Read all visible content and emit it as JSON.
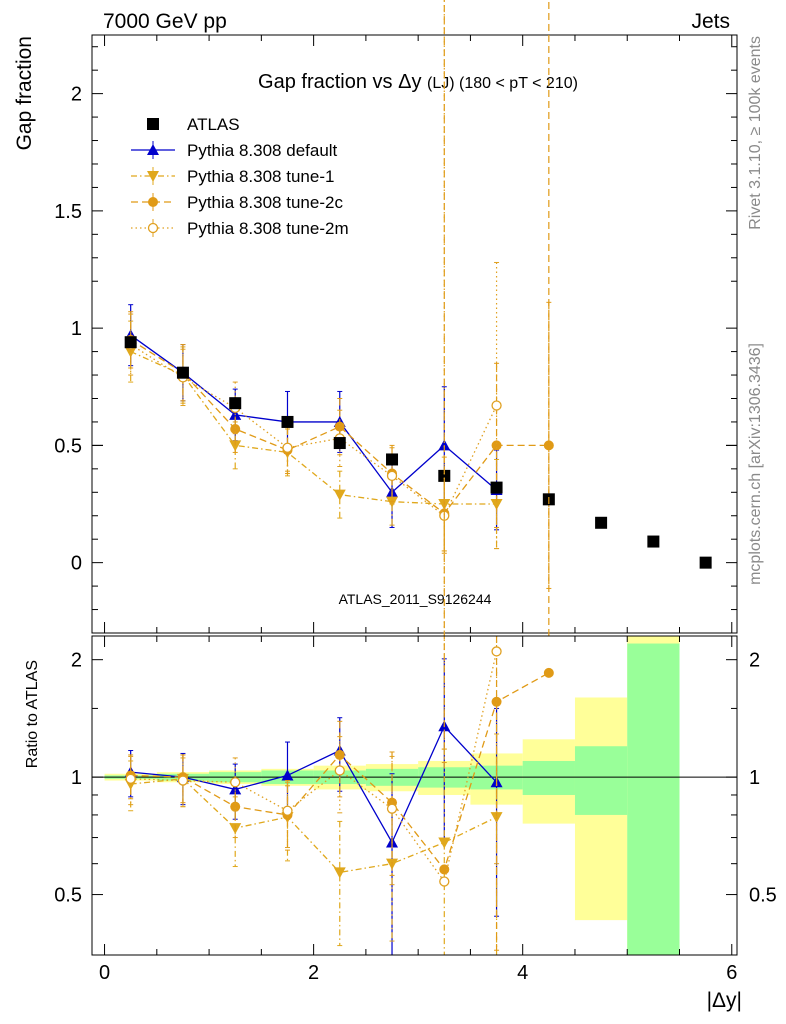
{
  "header": {
    "left": "7000 GeV pp",
    "right": "Jets",
    "side_top": "Rivet 3.1.10, ≥ 100k events",
    "side_bottom": "mcplots.cern.ch [arXiv:1306.3436]",
    "watermark": "ATLAS_2011_S9126244"
  },
  "chart_data": [
    {
      "type": "scatter",
      "title": "Gap fraction vs",
      "title_symbol": "Δy",
      "title_suffix": "(LJ) (180 < pT < 210)",
      "ylabel": "Gap fraction",
      "xlabel": "|Δy|",
      "xlim": [
        -0.12,
        6.05
      ],
      "ylim": [
        -0.3,
        2.25
      ],
      "yticks": [
        0,
        0.5,
        1,
        1.5,
        2
      ],
      "ytick_labels": [
        "0",
        "0.5",
        "1",
        "1.5",
        "2"
      ],
      "xticks": [
        0,
        2,
        4,
        6
      ],
      "xtick_labels": [
        "0",
        "2",
        "4",
        "6"
      ],
      "legend_placement": "top-left",
      "series": [
        {
          "name": "ATLAS",
          "color": "#000000",
          "marker": "square",
          "x": [
            0.25,
            0.75,
            1.25,
            1.75,
            2.25,
            2.75,
            3.25,
            3.75,
            4.25,
            4.75,
            5.25,
            5.75
          ],
          "y": [
            0.94,
            0.81,
            0.68,
            0.6,
            0.51,
            0.44,
            0.37,
            0.32,
            0.27,
            0.17,
            0.09,
            0.0
          ],
          "err": [
            0.02,
            0.02,
            0.02,
            0.02,
            0.02,
            0.02,
            0.02,
            0.02,
            0.02,
            0.02,
            0.02,
            0.02
          ]
        },
        {
          "name": "Pythia 8.308 default",
          "color": "#0000cc",
          "marker": "triangle-up",
          "line": "solid",
          "x": [
            0.25,
            0.75,
            1.25,
            1.75,
            2.25,
            2.75,
            3.25,
            3.75
          ],
          "y": [
            0.97,
            0.81,
            0.63,
            0.6,
            0.6,
            0.3,
            0.5,
            0.31
          ],
          "err": [
            0.13,
            0.12,
            0.11,
            0.13,
            0.13,
            0.15,
            0.25,
            0.17
          ]
        },
        {
          "name": "Pythia 8.308 tune-1",
          "color": "#e0a81c",
          "marker": "triangle-down",
          "line": "dashdot",
          "x": [
            0.25,
            0.75,
            1.25,
            1.75,
            2.25,
            2.75,
            3.25,
            3.75
          ],
          "y": [
            0.9,
            0.8,
            0.5,
            0.47,
            0.29,
            0.26,
            0.25,
            0.25
          ],
          "err": [
            0.13,
            0.12,
            0.1,
            0.1,
            0.1,
            0.1,
            0.2,
            0.19
          ]
        },
        {
          "name": "Pythia 8.308 tune-2c",
          "color": "#e09a16",
          "marker": "circle",
          "line": "dashed",
          "x": [
            0.25,
            0.75,
            1.25,
            1.75,
            2.25,
            2.75,
            3.25,
            3.75,
            4.25
          ],
          "y": [
            0.95,
            0.81,
            0.57,
            0.48,
            0.58,
            0.38,
            0.21,
            0.5,
            0.5
          ],
          "err": [
            0.12,
            0.12,
            0.1,
            0.1,
            0.12,
            0.12,
            0.17,
            0.35,
            0.61
          ]
        },
        {
          "name": "Pythia 8.308 tune-2m",
          "color": "#e0a020",
          "marker": "open-circle",
          "line": "dotted",
          "x": [
            0.25,
            0.75,
            1.25,
            1.75,
            2.25,
            2.75,
            3.25,
            3.75
          ],
          "y": [
            0.93,
            0.79,
            0.66,
            0.49,
            0.53,
            0.37,
            0.2,
            0.67
          ],
          "err": [
            0.13,
            0.12,
            0.11,
            0.1,
            0.12,
            0.12,
            0.15,
            0.61
          ]
        }
      ]
    },
    {
      "type": "scatter",
      "ylabel": "Ratio to ATLAS",
      "xlabel": "|Δy|",
      "xlim": [
        -0.12,
        6.05
      ],
      "ylim": [
        0.35,
        2.3
      ],
      "yticks": [
        0.5,
        1,
        2
      ],
      "ytick_labels": [
        "0.5",
        "1",
        "2"
      ],
      "ymajor": [
        0.5,
        1,
        2
      ],
      "yminor": [
        0.6,
        0.7,
        0.8,
        0.9,
        1.5
      ],
      "xticks": [
        0,
        2,
        4,
        6
      ],
      "xtick_labels": [
        "0",
        "2",
        "4",
        "6"
      ],
      "bands": {
        "x_low": [
          0,
          0.5,
          1,
          1.5,
          2,
          2.5,
          3,
          3.5,
          4,
          4.5,
          5
        ],
        "x_high": [
          0.5,
          1,
          1.5,
          2,
          2.5,
          3,
          3.5,
          4,
          4.5,
          5,
          5.5
        ],
        "green_low": [
          0.99,
          0.98,
          0.97,
          0.96,
          0.96,
          0.95,
          0.94,
          0.93,
          0.9,
          0.8,
          0.35
        ],
        "green_high": [
          1.01,
          1.02,
          1.03,
          1.04,
          1.04,
          1.05,
          1.06,
          1.07,
          1.1,
          1.2,
          2.2
        ],
        "yellow_low": [
          0.98,
          0.97,
          0.96,
          0.95,
          0.93,
          0.92,
          0.9,
          0.85,
          0.76,
          0.43,
          0.35
        ],
        "yellow_high": [
          1.02,
          1.03,
          1.04,
          1.05,
          1.07,
          1.08,
          1.1,
          1.15,
          1.25,
          1.6,
          2.3
        ],
        "green_color": "#99ff99",
        "yellow_color": "#ffff99"
      },
      "series": [
        {
          "name": "Pythia 8.308 default",
          "color": "#0000cc",
          "marker": "triangle-up",
          "line": "solid",
          "x": [
            0.25,
            0.75,
            1.25,
            1.75,
            2.25,
            2.75,
            3.25,
            3.75
          ],
          "y": [
            1.03,
            1.0,
            0.93,
            1.01,
            1.17,
            0.68,
            1.35,
            0.97
          ],
          "err": [
            0.14,
            0.15,
            0.15,
            0.22,
            0.25,
            0.34,
            0.66,
            0.53
          ]
        },
        {
          "name": "Pythia 8.308 tune-1",
          "color": "#e0a81c",
          "marker": "triangle-down",
          "line": "dashdot",
          "x": [
            0.25,
            0.75,
            1.25,
            1.75,
            2.25,
            2.75,
            3.25,
            3.75
          ],
          "y": [
            0.96,
            0.99,
            0.74,
            0.79,
            0.57,
            0.6,
            0.68,
            0.79
          ],
          "err": [
            0.14,
            0.15,
            0.15,
            0.18,
            0.2,
            0.22,
            0.5,
            0.5
          ]
        },
        {
          "name": "Pythia 8.308 tune-2c",
          "color": "#e09a16",
          "marker": "circle",
          "line": "dashed",
          "x": [
            0.25,
            0.75,
            1.25,
            1.75,
            2.25,
            2.75,
            3.25,
            3.75,
            4.25
          ],
          "y": [
            1.01,
            1.0,
            0.84,
            0.8,
            1.14,
            0.86,
            0.58,
            1.56,
            1.85
          ],
          "err": [
            0.13,
            0.14,
            0.14,
            0.15,
            0.25,
            0.3,
            0.6,
            1.2,
            2.5
          ]
        },
        {
          "name": "Pythia 8.308 tune-2m",
          "color": "#e0a020",
          "marker": "open-circle",
          "line": "dotted",
          "x": [
            0.25,
            0.75,
            1.25,
            1.75,
            2.25,
            2.75,
            3.25,
            3.75
          ],
          "y": [
            0.99,
            0.98,
            0.97,
            0.82,
            1.04,
            0.83,
            0.54,
            2.1
          ],
          "err": [
            0.14,
            0.14,
            0.15,
            0.16,
            0.23,
            0.3,
            0.55,
            1.5
          ]
        }
      ]
    }
  ]
}
